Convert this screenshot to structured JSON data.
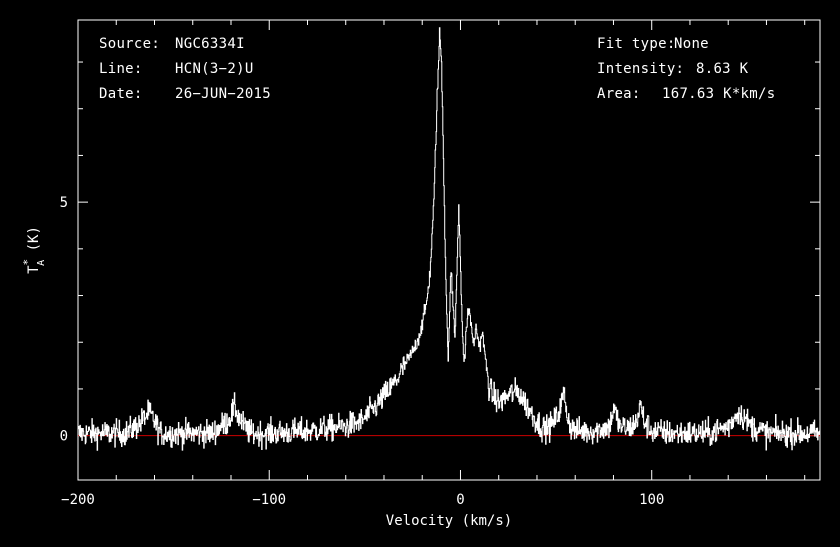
{
  "header": {
    "source_label": "Source:",
    "source_value": "NGC6334I",
    "line_label": "Line:",
    "line_value": "HCN(3−2)U",
    "date_label": "Date:",
    "date_value": "26−JUN−2015",
    "fit_label": "Fit type:",
    "fit_value": "None",
    "intensity_label": "Intensity:",
    "intensity_value": "8.63 K",
    "area_label": "Area:",
    "area_value": "167.63 K*km/s"
  },
  "chart_data": {
    "type": "line",
    "xlabel": "Velocity (km/s)",
    "ylabel": "T*A (K)",
    "ylabel_main": "T",
    "ylabel_sup": "*",
    "ylabel_sub": "A",
    "ylabel_unit": " (K)",
    "xlim": [
      -200,
      188
    ],
    "ylim": [
      -0.95,
      8.9
    ],
    "xticks": [
      -200,
      -100,
      0,
      100
    ],
    "xtick_labels": [
      "−200",
      "−100",
      "0",
      "100"
    ],
    "yticks": [
      0,
      5
    ],
    "ytick_labels": [
      "0",
      "5"
    ],
    "baseline": 0,
    "colors": {
      "background": "#000000",
      "spectrum": "#ffffff",
      "baseline": "#cc0000",
      "axes": "#ffffff"
    },
    "noise_rms": 0.14,
    "series": [
      {
        "x": [
          -200,
          -175,
          -168,
          -163,
          -160,
          -157,
          -150,
          -130,
          -122,
          -118,
          -115,
          -110,
          -100,
          -80,
          -60,
          -52,
          -45,
          -40,
          -35,
          -30,
          -25,
          -22,
          -20,
          -18,
          -16,
          -14,
          -12.5,
          -11,
          -10,
          -9,
          -8,
          -7,
          -6.5,
          -6,
          -5,
          -4,
          -3,
          -2,
          -1,
          0,
          1,
          2,
          3,
          4,
          5,
          6,
          7,
          8,
          9,
          10,
          11,
          12,
          13,
          14,
          15,
          17,
          20,
          23,
          26,
          30,
          33,
          36,
          39,
          42,
          45,
          48,
          51,
          54,
          56,
          58,
          62,
          70,
          78,
          80,
          83,
          88,
          92,
          94,
          96,
          100,
          110,
          130,
          140,
          145,
          148,
          152,
          160,
          175,
          188
        ],
        "y": [
          0.05,
          0.05,
          0.25,
          0.5,
          0.3,
          0.05,
          0.05,
          0.05,
          0.3,
          0.6,
          0.3,
          0.05,
          0.05,
          0.1,
          0.2,
          0.3,
          0.6,
          0.85,
          1.1,
          1.45,
          1.8,
          2.1,
          2.4,
          2.8,
          3.5,
          5.0,
          7.0,
          8.6,
          8.0,
          6.0,
          3.8,
          2.3,
          1.4,
          2.5,
          3.5,
          2.8,
          2.1,
          3.5,
          5.0,
          3.5,
          2.0,
          1.6,
          2.3,
          2.7,
          2.6,
          2.1,
          2.0,
          2.3,
          2.1,
          1.9,
          2.2,
          2.0,
          1.6,
          1.3,
          1.0,
          0.85,
          0.7,
          0.8,
          0.9,
          0.95,
          0.75,
          0.55,
          0.35,
          0.2,
          0.15,
          0.25,
          0.45,
          0.9,
          0.4,
          0.15,
          0.1,
          0.1,
          0.2,
          0.6,
          0.2,
          0.15,
          0.3,
          0.65,
          0.3,
          0.1,
          0.05,
          0.05,
          0.2,
          0.5,
          0.4,
          0.2,
          0.05,
          0.05,
          0.05
        ]
      }
    ]
  }
}
